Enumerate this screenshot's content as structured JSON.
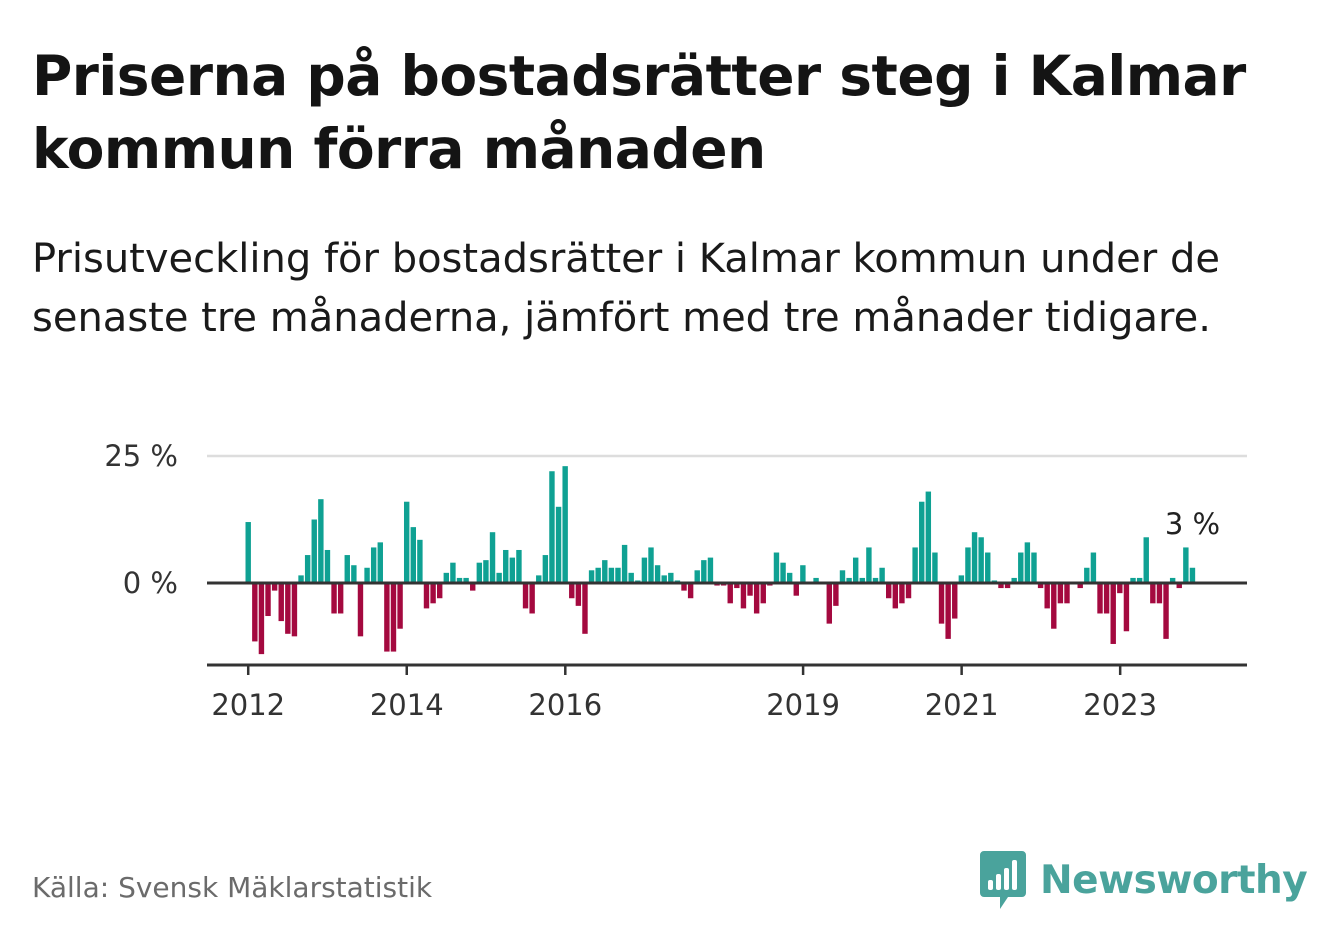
{
  "title": "Priserna på bostadsrätter steg i Kalmar kommun förra månaden",
  "subtitle": "Prisutveckling för bostadsrätter i Kalmar kommun under de senaste tre månaderna, jämfört med tre månader tidigare.",
  "source": "Källa: Svensk Mäklarstatistik",
  "brand": {
    "name": "Newsworthy",
    "icon": "newsworthy-logo-icon"
  },
  "colors": {
    "positive": "#0fa193",
    "negative": "#a4093f",
    "grid": "#dddddd",
    "axis": "#333333",
    "brand": "#4aa39c"
  },
  "chart_data": {
    "type": "bar",
    "ylabel": "",
    "xlabel": "",
    "ylim": [
      -16,
      25
    ],
    "y_ticks": [
      {
        "value": 25,
        "label": "25 %"
      },
      {
        "value": 0,
        "label": "0 %"
      }
    ],
    "x_range": [
      2011.48,
      2024.6
    ],
    "x_ticks": [
      {
        "value": 2012,
        "label": "2012"
      },
      {
        "value": 2014,
        "label": "2014"
      },
      {
        "value": 2016,
        "label": "2016"
      },
      {
        "value": 2019,
        "label": "2019"
      },
      {
        "value": 2021,
        "label": "2021"
      },
      {
        "value": 2023,
        "label": "2023"
      }
    ],
    "annotation": {
      "label": "3 %",
      "value": 3
    },
    "x_start": 2012.0,
    "x_step": 0.0833,
    "values": [
      12,
      -11.5,
      -14,
      -6.5,
      -1.5,
      -7.5,
      -10,
      -10.5,
      1.5,
      5.5,
      12.5,
      16.5,
      6.5,
      -6,
      -6,
      5.5,
      3.5,
      -10.5,
      3,
      7,
      8,
      -13.5,
      -13.5,
      -9,
      16,
      11,
      8.5,
      -5,
      -4,
      -3,
      2,
      4,
      1,
      1,
      -1.5,
      4,
      4.5,
      10,
      2,
      6.5,
      5,
      6.5,
      -5,
      -6,
      1.5,
      5.5,
      22,
      15,
      23,
      -3,
      -4.5,
      -10,
      2.5,
      3,
      4.5,
      3,
      3,
      7.5,
      2,
      0.5,
      5,
      7,
      3.5,
      1.5,
      2,
      0.5,
      -1.5,
      -3,
      2.5,
      4.5,
      5,
      -0.5,
      -0.5,
      -4,
      -1,
      -5,
      -2.5,
      -6,
      -4,
      -0.5,
      6,
      4,
      2,
      -2.5,
      3.5,
      0,
      1,
      0,
      -8,
      -4.5,
      2.5,
      1,
      5,
      1,
      7,
      1,
      3,
      -3,
      -5,
      -4,
      -3,
      7,
      16,
      18,
      6,
      -8,
      -11,
      -7,
      1.5,
      7,
      10,
      9,
      6,
      0.5,
      -1,
      -1,
      1,
      6,
      8,
      6,
      -1,
      -5,
      -9,
      -4,
      -4,
      0,
      -1,
      3,
      6,
      -6,
      -6,
      -12,
      -2,
      -9.5,
      1,
      1,
      9,
      -4,
      -4,
      -11,
      1,
      -1,
      7,
      3
    ]
  }
}
